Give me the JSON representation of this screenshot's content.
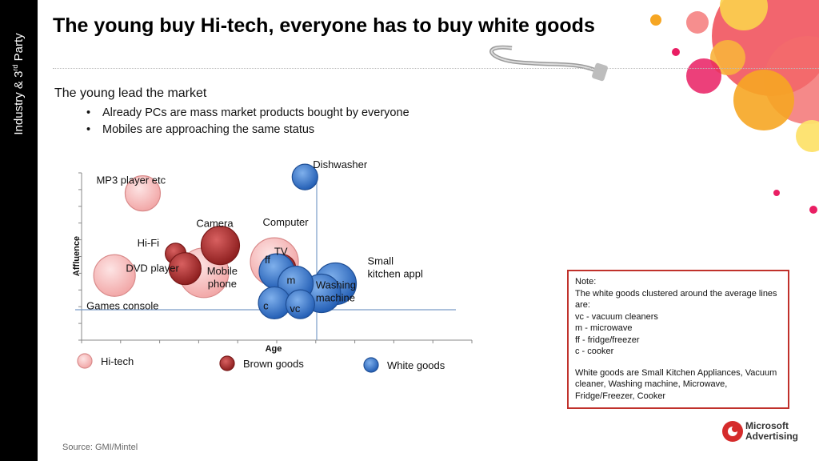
{
  "slide": {
    "side_label": "Industry & 3",
    "side_label_sup": "rd",
    "side_label_end": " Party",
    "title": "The young buy Hi-tech, everyone has to buy white goods",
    "intro": "The young lead the market",
    "bullets": [
      "Already PCs are mass market products bought by everyone",
      "Mobiles are approaching the same status"
    ],
    "note": {
      "heading": "Note:",
      "lines": [
        "The white goods clustered around the average lines are:",
        "vc - vacuum cleaners",
        "m - microwave",
        "ff - fridge/freezer",
        "c - cooker"
      ],
      "footer": "White goods are Small Kitchen Appliances, Vacuum cleaner, Washing machine, Microwave, Fridge/Freezer, Cooker"
    },
    "source": "Source: GMI/Mintel",
    "logo_line1": "Microsoft",
    "logo_line2": "Advertising"
  },
  "chart_data": {
    "type": "scatter",
    "xlabel": "Age",
    "ylabel": "Affluence",
    "legend_placement": "bottom",
    "colors": {
      "Hi-tech": "#f2a8a8",
      "Brown goods": "#b03030",
      "White goods": "#3b74c4"
    },
    "series": [
      {
        "name": "Hi-tech",
        "points": [
          {
            "label": "MP3 player etc",
            "x": 0.26,
            "y": 0.85
          },
          {
            "label": "Games console",
            "x": 0.14,
            "y": 0.25
          },
          {
            "label": "Mobile phone",
            "x": 0.52,
            "y": 0.27
          },
          {
            "label": "Computer",
            "x": 0.82,
            "y": 0.35
          }
        ]
      },
      {
        "name": "Brown goods",
        "points": [
          {
            "label": "Camera",
            "x": 0.59,
            "y": 0.47
          },
          {
            "label": "Hi-Fi",
            "x": 0.4,
            "y": 0.41
          },
          {
            "label": "DVD player",
            "x": 0.44,
            "y": 0.3
          },
          {
            "label": "TV",
            "x": 0.85,
            "y": 0.3
          }
        ]
      },
      {
        "name": "White goods",
        "points": [
          {
            "label": "Dishwasher",
            "x": 0.95,
            "y": 0.97
          },
          {
            "label": "Small kitchen appl",
            "x": 1.08,
            "y": 0.19
          },
          {
            "label": "Washing machine",
            "x": 1.02,
            "y": 0.12
          },
          {
            "label": "ff",
            "x": 0.83,
            "y": 0.28
          },
          {
            "label": "m",
            "x": 0.91,
            "y": 0.19
          },
          {
            "label": "c",
            "x": 0.82,
            "y": 0.05
          },
          {
            "label": "vc",
            "x": 0.93,
            "y": 0.04
          }
        ]
      }
    ]
  }
}
